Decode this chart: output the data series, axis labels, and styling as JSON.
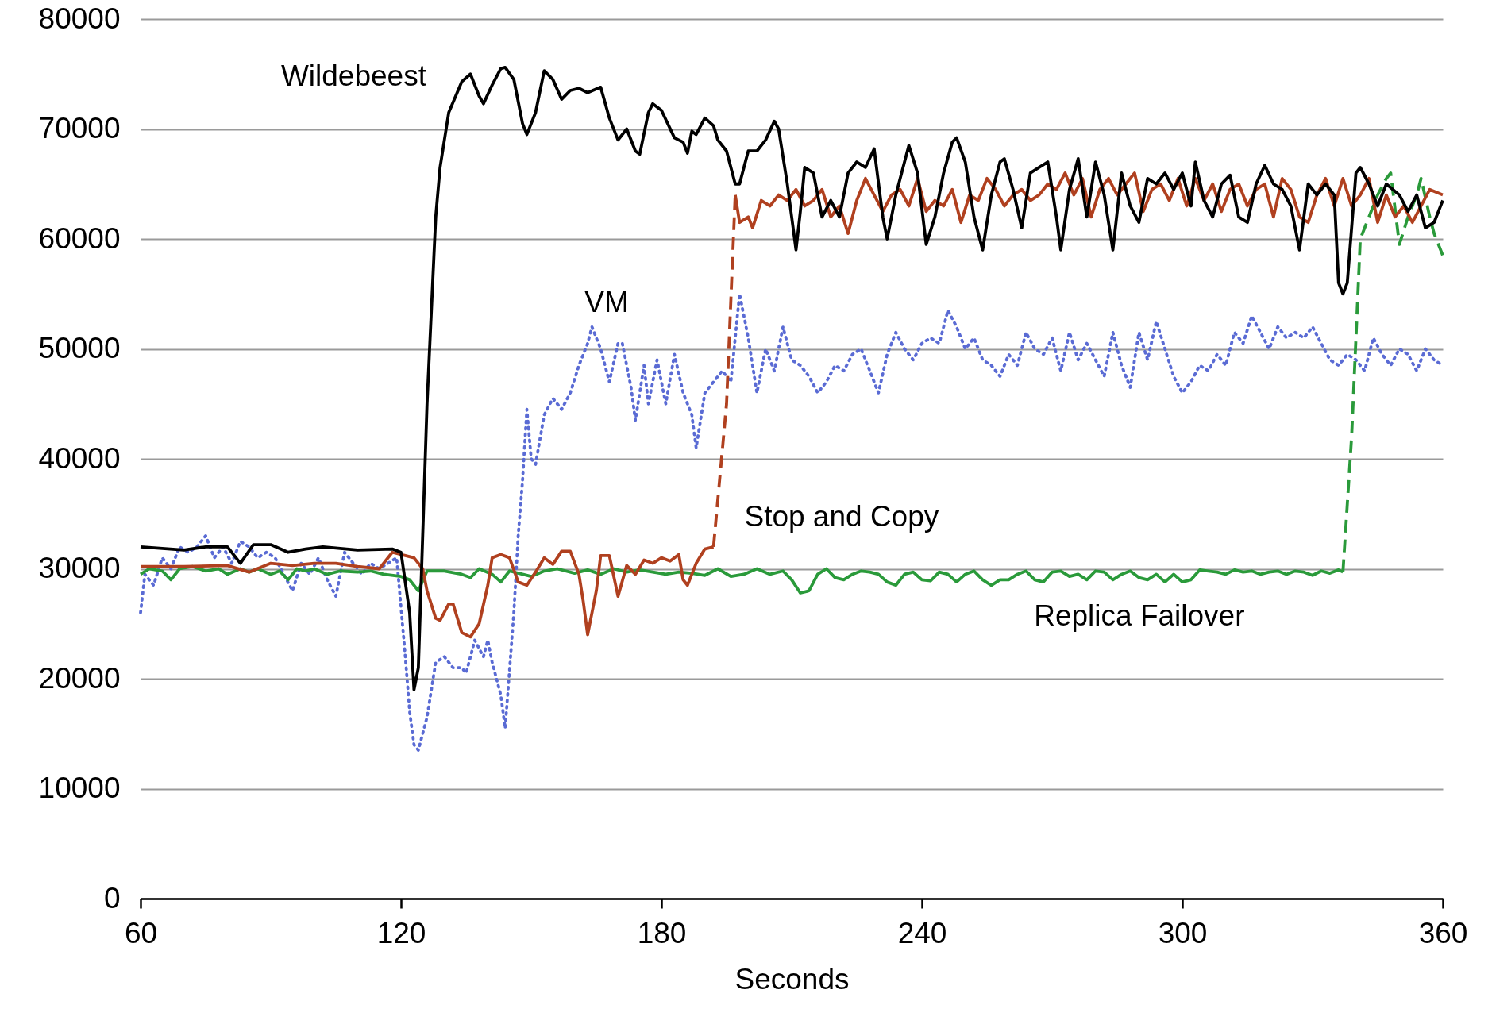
{
  "chart_data": {
    "type": "line",
    "xlabel": "Seconds",
    "xlim": [
      60,
      360
    ],
    "ylim": [
      0,
      80000
    ],
    "xticks": [
      60,
      120,
      180,
      240,
      300,
      360
    ],
    "yticks": [
      0,
      10000,
      20000,
      30000,
      40000,
      50000,
      60000,
      70000,
      80000
    ],
    "grid": "y",
    "marker": "none",
    "series": [
      {
        "name": "VM",
        "color": "#5a6bd4",
        "line_style": "dotted",
        "x": [
          60,
          61,
          63,
          65,
          67,
          69,
          71,
          73,
          75,
          77,
          79,
          81,
          83,
          85,
          87,
          89,
          91,
          93,
          95,
          97,
          99,
          101,
          103,
          105,
          107,
          109,
          111,
          113,
          115,
          117,
          119,
          121,
          122,
          123,
          124,
          126,
          128,
          130,
          132,
          134,
          135,
          137,
          139,
          140,
          141,
          143,
          144,
          146,
          147,
          148,
          149,
          150,
          151,
          153,
          155,
          157,
          159,
          161,
          163,
          164,
          166,
          168,
          170,
          171,
          173,
          174,
          176,
          177,
          179,
          181,
          183,
          185,
          187,
          188,
          190,
          192,
          194,
          196,
          198,
          200,
          202,
          204,
          206,
          208,
          210,
          212,
          214,
          216,
          218,
          220,
          222,
          224,
          226,
          228,
          230,
          232,
          234,
          236,
          238,
          240,
          242,
          244,
          246,
          248,
          250,
          252,
          254,
          256,
          258,
          260,
          262,
          264,
          266,
          268,
          270,
          272,
          274,
          276,
          278,
          280,
          282,
          284,
          286,
          288,
          290,
          292,
          294,
          296,
          298,
          300,
          302,
          304,
          306,
          308,
          310,
          312,
          314,
          316,
          318,
          320,
          322,
          324,
          326,
          328,
          330,
          332,
          334,
          336,
          338,
          340,
          342,
          344,
          346,
          348,
          350,
          352,
          354,
          356,
          358,
          360
        ],
        "values": [
          26000,
          29500,
          28500,
          31000,
          30000,
          32000,
          31500,
          32000,
          33000,
          31000,
          32000,
          30500,
          32500,
          32000,
          31000,
          31500,
          31000,
          29500,
          28000,
          30500,
          29500,
          31000,
          29000,
          27500,
          31500,
          30500,
          29500,
          30500,
          30000,
          30500,
          31000,
          22000,
          17000,
          14000,
          13500,
          16500,
          21500,
          22000,
          21000,
          21000,
          20500,
          23500,
          22000,
          23500,
          21500,
          18500,
          15500,
          26000,
          33000,
          38000,
          44500,
          40000,
          39500,
          44000,
          45500,
          44500,
          46000,
          48500,
          50500,
          52000,
          50000,
          47000,
          50500,
          50500,
          46500,
          43500,
          48500,
          45000,
          49000,
          45000,
          49500,
          46000,
          44000,
          41000,
          46000,
          47000,
          48000,
          47000,
          55000,
          51000,
          46000,
          50000,
          48000,
          52000,
          49000,
          48500,
          47500,
          46000,
          47000,
          48500,
          48000,
          49500,
          50000,
          48000,
          46000,
          49500,
          51500,
          50000,
          49000,
          50500,
          51000,
          50500,
          53500,
          52000,
          50000,
          51000,
          49000,
          48500,
          47500,
          49500,
          48500,
          51500,
          50000,
          49500,
          51000,
          48000,
          51500,
          49000,
          50500,
          49000,
          47500,
          51500,
          48500,
          46500,
          51500,
          49000,
          52500,
          50000,
          47500,
          46000,
          47000,
          48500,
          48000,
          49500,
          48500,
          51500,
          50500,
          53000,
          51500,
          50000,
          52000,
          51000,
          51500,
          51000,
          52000,
          50500,
          49000,
          48500,
          49500,
          49000,
          48000,
          51000,
          49500,
          48500,
          50000,
          49500,
          48000,
          50000,
          49000,
          48500
        ]
      },
      {
        "name": "Replica Failover",
        "color": "#2a9a3a",
        "line_style": "solid",
        "x": [
          60,
          62,
          65,
          67,
          69,
          72,
          75,
          78,
          80,
          83,
          85,
          87,
          90,
          92,
          94,
          96,
          98,
          100,
          103,
          106,
          110,
          113,
          116,
          120,
          122,
          124,
          126,
          130,
          134,
          136,
          138,
          141,
          143,
          145,
          148,
          150,
          153,
          156,
          160,
          163,
          166,
          169,
          172,
          175,
          178,
          181,
          184,
          187,
          190,
          193,
          196,
          199,
          202,
          205,
          208,
          210,
          212,
          214,
          216,
          218,
          220,
          222,
          224,
          226,
          228,
          230,
          232,
          234,
          236,
          238,
          240,
          242,
          244,
          246,
          248,
          250,
          252,
          254,
          256,
          258,
          260,
          262,
          264,
          266,
          268,
          270,
          272,
          274,
          276,
          278,
          280,
          282,
          284,
          286,
          288,
          290,
          292,
          294,
          296,
          298,
          300,
          302,
          304,
          306,
          308,
          310,
          312,
          314,
          316,
          318,
          320,
          322,
          324,
          326,
          328,
          330,
          332,
          334,
          336,
          337
        ],
        "values": [
          29500,
          30000,
          29800,
          29000,
          30000,
          30200,
          29800,
          30000,
          29500,
          30000,
          29700,
          30000,
          29500,
          29800,
          29000,
          30000,
          29800,
          30000,
          29500,
          29800,
          29700,
          29800,
          29500,
          29300,
          29000,
          28000,
          29800,
          29800,
          29500,
          29200,
          30000,
          29500,
          28800,
          29800,
          29500,
          29300,
          29800,
          30000,
          29600,
          29900,
          29500,
          30000,
          29700,
          29900,
          29700,
          29500,
          29700,
          29600,
          29400,
          30000,
          29300,
          29500,
          30000,
          29500,
          29800,
          29000,
          27800,
          28000,
          29500,
          30000,
          29200,
          29000,
          29500,
          29800,
          29700,
          29500,
          28800,
          28500,
          29500,
          29700,
          29000,
          28900,
          29700,
          29500,
          28800,
          29500,
          29800,
          29000,
          28500,
          29000,
          29000,
          29500,
          29800,
          29000,
          28800,
          29700,
          29800,
          29300,
          29500,
          29000,
          29800,
          29700,
          29000,
          29500,
          29800,
          29200,
          29000,
          29500,
          28800,
          29500,
          28800,
          29000,
          29900,
          29800,
          29700,
          29500,
          29900,
          29700,
          29800,
          29500,
          29700,
          29800,
          29500,
          29800,
          29700,
          29400,
          29800,
          29600,
          29900,
          29700
        ]
      },
      {
        "color": "#2a9a3a",
        "line_style": "dashed",
        "x": [
          337,
          339,
          341,
          343,
          345,
          347,
          348,
          350,
          352,
          354,
          355,
          357,
          358,
          360
        ],
        "values": [
          29700,
          42000,
          60000,
          62000,
          64000,
          65500,
          66000,
          59500,
          62000,
          64000,
          65500,
          62000,
          60500,
          58500
        ]
      },
      {
        "name": "Stop and Copy",
        "color": "#b0401f",
        "line_style": "solid",
        "x": [
          60,
          70,
          80,
          85,
          90,
          95,
          100,
          105,
          110,
          115,
          118,
          120,
          123,
          125,
          126,
          128,
          129,
          131,
          132,
          134,
          136,
          138,
          140,
          141,
          143,
          145,
          147,
          149,
          151,
          153,
          155,
          157,
          159,
          161,
          162,
          163,
          165,
          166,
          168,
          170,
          172,
          174,
          176,
          178,
          180,
          182,
          184,
          185,
          186,
          188,
          190,
          192
        ],
        "values": [
          30200,
          30200,
          30300,
          29700,
          30500,
          30300,
          30500,
          30500,
          30200,
          30000,
          31500,
          31300,
          31000,
          30000,
          28000,
          25500,
          25300,
          26800,
          26800,
          24200,
          23800,
          25000,
          28500,
          31000,
          31300,
          31000,
          28800,
          28500,
          29700,
          31000,
          30400,
          31600,
          31600,
          29500,
          27000,
          24000,
          28000,
          31200,
          31200,
          27500,
          30300,
          29500,
          30800,
          30500,
          31000,
          30700,
          31300,
          29000,
          28500,
          30500,
          31800,
          32000
        ]
      },
      {
        "color": "#b0401f",
        "line_style": "dashed",
        "x": [
          192,
          195,
          197
        ],
        "values": [
          32000,
          45000,
          64000
        ]
      },
      {
        "color": "#b0401f",
        "line_style": "solid",
        "x": [
          197,
          198,
          200,
          201,
          203,
          205,
          207,
          209,
          211,
          213,
          215,
          217,
          219,
          221,
          223,
          225,
          227,
          229,
          231,
          233,
          235,
          237,
          239,
          241,
          243,
          245,
          247,
          249,
          251,
          253,
          255,
          257,
          259,
          261,
          263,
          265,
          267,
          269,
          271,
          273,
          275,
          277,
          279,
          281,
          283,
          285,
          287,
          289,
          291,
          293,
          295,
          297,
          299,
          301,
          303,
          305,
          307,
          309,
          311,
          313,
          315,
          317,
          319,
          321,
          323,
          325,
          327,
          329,
          331,
          333,
          335,
          337,
          339,
          341,
          343,
          345,
          347,
          349,
          351,
          353,
          355,
          357,
          360
        ],
        "values": [
          64000,
          61500,
          62000,
          61000,
          63500,
          63000,
          64000,
          63500,
          64500,
          63000,
          63500,
          64500,
          62000,
          63000,
          60500,
          63500,
          65500,
          64000,
          62500,
          64000,
          64500,
          63000,
          65500,
          62500,
          63500,
          63000,
          64500,
          61500,
          64000,
          63500,
          65500,
          64500,
          63000,
          64000,
          64500,
          63500,
          64000,
          65000,
          64500,
          66000,
          64000,
          65500,
          62000,
          64500,
          65500,
          64000,
          65000,
          66000,
          62500,
          64500,
          65000,
          63500,
          65500,
          63000,
          65500,
          63500,
          65000,
          62500,
          64500,
          65000,
          63000,
          64500,
          65000,
          62000,
          65500,
          64500,
          62000,
          61500,
          64000,
          65500,
          63000,
          65500,
          63000,
          64000,
          65500,
          61500,
          64000,
          62000,
          63000,
          61500,
          63000,
          64500,
          64000
        ]
      },
      {
        "name": "Wildebeest",
        "color": "#000000",
        "line_style": "solid",
        "x": [
          60,
          70,
          75,
          80,
          83,
          86,
          90,
          94,
          98,
          102,
          110,
          118,
          120,
          122,
          123,
          124,
          126,
          128,
          129,
          131,
          134,
          136,
          138,
          139,
          141,
          143,
          144,
          146,
          148,
          149,
          151,
          153,
          155,
          157,
          159,
          161,
          163,
          166,
          168,
          170,
          172,
          174,
          175,
          177,
          178,
          180,
          183,
          185,
          186,
          187,
          188,
          190,
          192,
          193,
          195,
          197,
          198,
          200,
          202,
          204,
          206,
          207,
          209,
          210,
          211,
          212,
          213,
          215,
          217,
          219,
          221,
          223,
          225,
          227,
          229,
          231,
          232,
          234,
          236,
          237,
          239,
          241,
          243,
          245,
          247,
          248,
          250,
          252,
          254,
          256,
          258,
          259,
          261,
          263,
          265,
          267,
          269,
          271,
          272,
          274,
          276,
          278,
          280,
          282,
          284,
          286,
          288,
          290,
          292,
          294,
          296,
          298,
          300,
          302,
          303,
          305,
          307,
          309,
          311,
          313,
          315,
          317,
          319,
          321,
          323,
          325,
          327,
          329,
          331,
          333,
          335,
          336,
          337,
          338,
          340,
          341,
          343,
          345,
          347,
          350,
          352,
          354,
          356,
          358,
          360
        ],
        "values": [
          32000,
          31700,
          32000,
          32000,
          30500,
          32200,
          32200,
          31500,
          31800,
          32000,
          31700,
          31800,
          31500,
          26000,
          19000,
          21000,
          45000,
          62000,
          66500,
          71500,
          74300,
          75000,
          73000,
          72300,
          74000,
          75500,
          75600,
          74500,
          70500,
          69500,
          71500,
          75300,
          74500,
          72700,
          73500,
          73700,
          73300,
          73800,
          71000,
          69000,
          70000,
          68000,
          67700,
          71500,
          72300,
          71700,
          69200,
          68800,
          67800,
          69800,
          69500,
          71000,
          70300,
          69000,
          68000,
          65000,
          65000,
          68000,
          68000,
          69000,
          70700,
          70000,
          65000,
          62000,
          59000,
          62500,
          66500,
          66000,
          62000,
          63500,
          62000,
          66000,
          67000,
          66500,
          68200,
          62000,
          60000,
          64000,
          67000,
          68500,
          66000,
          59500,
          62000,
          66000,
          68800,
          69200,
          67000,
          62000,
          59000,
          64000,
          67000,
          67300,
          64500,
          61000,
          66000,
          66500,
          67000,
          62000,
          59000,
          64500,
          67300,
          62000,
          67000,
          64000,
          59000,
          66000,
          63000,
          61500,
          65500,
          65000,
          66000,
          64500,
          66000,
          63000,
          67000,
          63500,
          62000,
          65000,
          65800,
          62000,
          61500,
          65000,
          66700,
          65000,
          64500,
          63000,
          59000,
          65000,
          64000,
          65000,
          64000,
          56000,
          55000,
          56000,
          66000,
          66500,
          65000,
          63000,
          65000,
          64000,
          62500,
          64000,
          61000,
          61500,
          63500
        ]
      }
    ]
  }
}
